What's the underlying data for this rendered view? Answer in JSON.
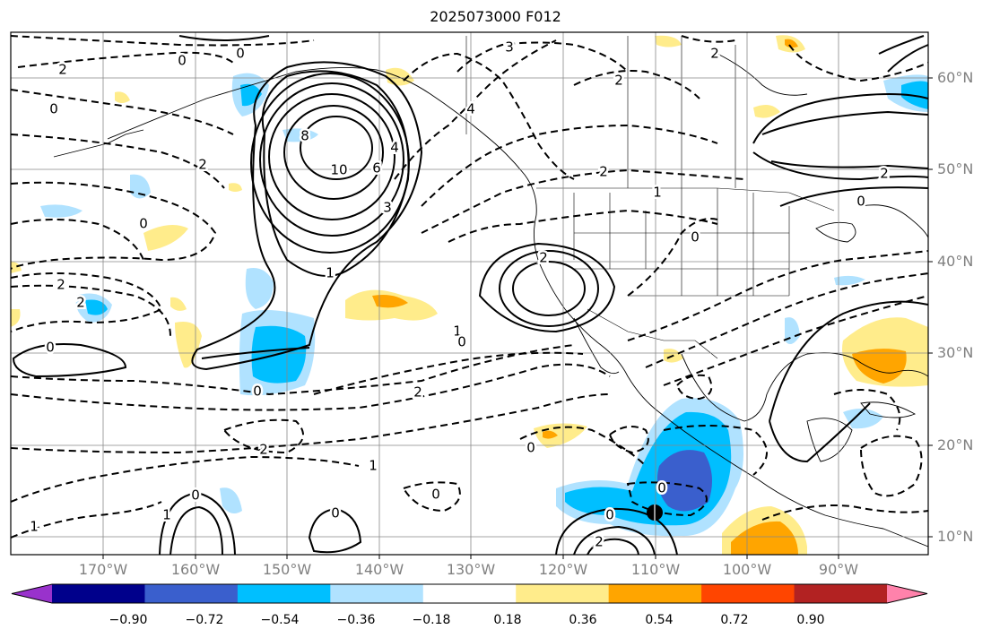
{
  "title": "2025073000 F012",
  "lat_labels": [
    "60°N",
    "50°N",
    "40°N",
    "30°N",
    "20°N",
    "10°N"
  ],
  "lon_labels": [
    "170°W",
    "160°W",
    "150°W",
    "140°W",
    "130°W",
    "120°W",
    "110°W",
    "100°W",
    "90°W"
  ],
  "colorbar": {
    "ticks": [
      "−0.90",
      "−0.72",
      "−0.54",
      "−0.36",
      "−0.18",
      "0.18",
      "0.36",
      "0.54",
      "0.72",
      "0.90"
    ],
    "colors": [
      "#9932cc",
      "#00008b",
      "#3a5fcd",
      "#00bfff",
      "#b0e2ff",
      "#ffffff",
      "#ffec8b",
      "#ffa500",
      "#ff4500",
      "#b22222",
      "#ff82ab"
    ]
  },
  "contour_labels": [
    "0",
    "2",
    "3",
    "2",
    "0",
    "0",
    "2",
    "0",
    "4",
    "10",
    "8",
    "6",
    "4",
    "2",
    "2",
    "1",
    "2",
    "0",
    "3",
    "2",
    "1",
    "0",
    "1",
    "0",
    "2",
    "2",
    "0",
    "2",
    "1",
    "0",
    "0",
    "0",
    "1",
    "1",
    "2",
    "0",
    "0",
    "0",
    "2",
    "0"
  ]
}
